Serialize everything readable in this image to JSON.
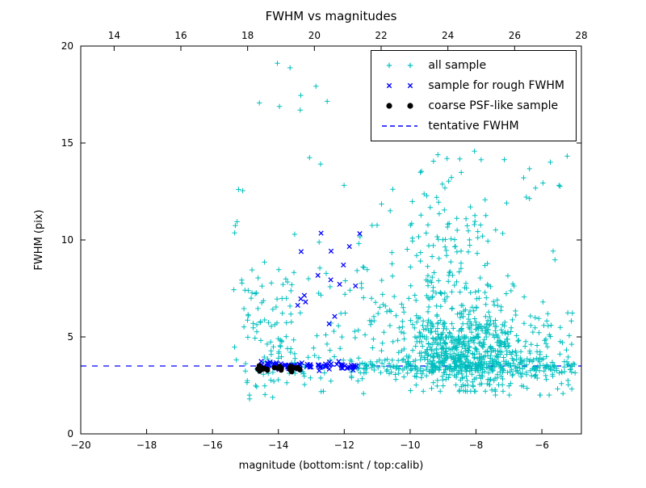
{
  "chart_data": {
    "type": "scatter",
    "title": "FWHM vs magnitudes",
    "xlabel": "magnitude (bottom:isnt / top:calib)",
    "ylabel": "FWHM (pix)",
    "axes": {
      "x_bottom": {
        "min": -20,
        "max": -4.8,
        "ticks": [
          -20,
          -18,
          -16,
          -14,
          -12,
          -10,
          -8,
          -6
        ],
        "tick_labels": [
          "−20",
          "−18",
          "−16",
          "−14",
          "−12",
          "−10",
          "−8",
          "−6"
        ]
      },
      "x_top": {
        "min": 13,
        "max": 28,
        "ticks": [
          14,
          16,
          18,
          20,
          22,
          24,
          26,
          28
        ],
        "tick_labels": [
          "14",
          "16",
          "18",
          "20",
          "22",
          "24",
          "26",
          "28"
        ]
      },
      "y": {
        "min": 0,
        "max": 20,
        "ticks": [
          0,
          5,
          10,
          15,
          20
        ],
        "tick_labels": [
          "0",
          "5",
          "10",
          "15",
          "20"
        ]
      }
    },
    "grid": false,
    "tentative_fwhm": {
      "value": 3.5,
      "color": "#0000ff",
      "style": "dashed"
    },
    "legend": {
      "position": "upper right",
      "entries": [
        "all sample",
        "sample for rough FWHM",
        "coarse PSF-like sample",
        "tentative FWHM"
      ]
    },
    "seed": 7,
    "series": [
      {
        "name": "all sample",
        "marker": "plus",
        "color": "#00bfbf",
        "clusters": [
          {
            "n": 520,
            "x": {
              "dist": "normal",
              "mean": -8.4,
              "sd": 0.85
            },
            "y": {
              "dist": "normal",
              "mean": 4.3,
              "sd": 1.1,
              "clip": [
                2.2,
                8.5
              ]
            }
          },
          {
            "n": 150,
            "x": {
              "dist": "normal",
              "mean": -8.8,
              "sd": 0.65
            },
            "y": {
              "dist": "normal",
              "mean": 8.5,
              "sd": 2.6,
              "clip": [
                5,
                15.5
              ]
            }
          },
          {
            "n": 230,
            "x": {
              "dist": "uniform",
              "min": -11.8,
              "max": -4.95
            },
            "y": {
              "dist": "normal",
              "mean": 3.45,
              "sd": 0.22
            }
          },
          {
            "n": 90,
            "x": {
              "dist": "uniform",
              "min": -7.5,
              "max": -5.0
            },
            "y": {
              "dist": "normal",
              "mean": 4.2,
              "sd": 1.3,
              "clip": [
                2.0,
                8.0
              ]
            }
          },
          {
            "n": 130,
            "x": {
              "dist": "uniform",
              "min": -15.4,
              "max": -5.0
            },
            "y": {
              "dist": "uniform",
              "min": 1.9,
              "max": 19.7
            }
          },
          {
            "n": 40,
            "x": {
              "dist": "uniform",
              "min": -15.0,
              "max": -13.5
            },
            "y": {
              "dist": "normal",
              "mean": 6.6,
              "sd": 0.9
            }
          },
          {
            "n": 75,
            "x": {
              "dist": "normal",
              "mean": -13.8,
              "sd": 0.7
            },
            "y": {
              "dist": "normal",
              "mean": 3.6,
              "sd": 0.8,
              "clip": [
                1.8,
                6.0
              ]
            }
          },
          {
            "n": 60,
            "x": {
              "dist": "normal",
              "mean": -11.3,
              "sd": 0.8
            },
            "y": {
              "dist": "normal",
              "mean": 6.5,
              "sd": 1.8,
              "clip": [
                3.8,
                12.0
              ]
            }
          }
        ]
      },
      {
        "name": "sample for rough FWHM",
        "marker": "x",
        "color": "#0000ff",
        "clusters": [
          {
            "n": 85,
            "x": {
              "dist": "uniform",
              "min": -14.55,
              "max": -11.6
            },
            "y": {
              "dist": "normal",
              "mean": 3.5,
              "sd": 0.1
            }
          },
          {
            "n": 16,
            "x": {
              "dist": "uniform",
              "min": -13.6,
              "max": -11.5
            },
            "y": {
              "dist": "uniform",
              "min": 5.5,
              "max": 12.0
            }
          }
        ]
      },
      {
        "name": "coarse PSF-like sample",
        "marker": "circle",
        "color": "#000000",
        "clusters": [
          {
            "n": 26,
            "x": {
              "dist": "uniform",
              "min": -14.7,
              "max": -13.3
            },
            "y": {
              "dist": "normal",
              "mean": 3.38,
              "sd": 0.06
            }
          }
        ]
      }
    ]
  }
}
